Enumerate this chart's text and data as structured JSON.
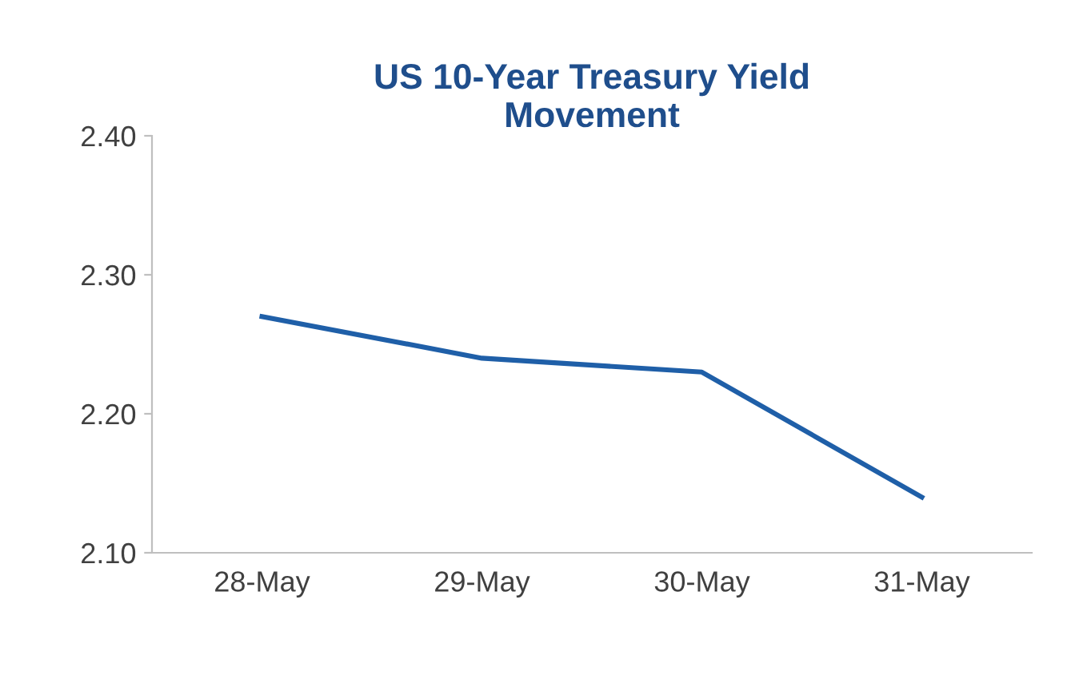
{
  "chart_data": {
    "type": "line",
    "title": "US 10-Year Treasury Yield\nMovement",
    "categories": [
      "28-May",
      "29-May",
      "30-May",
      "31-May"
    ],
    "series": [
      {
        "color": "#1f5fa8",
        "values": [
          2.27,
          2.24,
          2.23,
          2.14
        ]
      }
    ],
    "ylim": [
      2.1,
      2.4
    ],
    "yticks": [
      {
        "value": 2.1,
        "label": "2.10"
      },
      {
        "value": 2.2,
        "label": "2.20"
      },
      {
        "value": 2.3,
        "label": "2.30"
      },
      {
        "value": 2.4,
        "label": "2.40"
      }
    ],
    "grid": false,
    "legend": false,
    "marker": "none",
    "line_style": "solid"
  }
}
